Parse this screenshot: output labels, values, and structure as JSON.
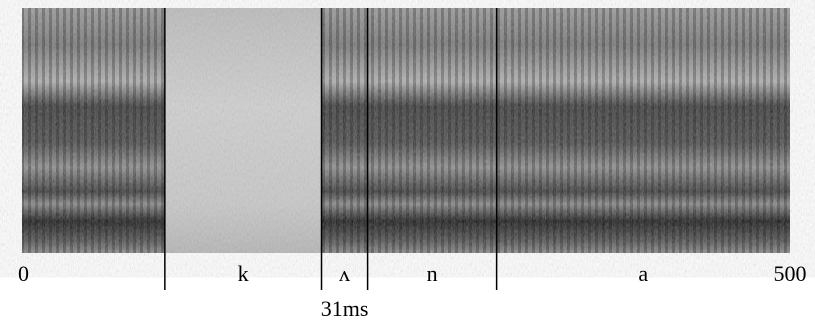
{
  "chart_data": {
    "type": "spectrogram",
    "xlim": [
      0,
      500
    ],
    "xticks": [
      0,
      500
    ],
    "boundaries": [
      93,
      195,
      225,
      309
    ],
    "segments": [
      "k",
      "ʌ",
      "n",
      "a"
    ],
    "annotation": "31ms"
  }
}
